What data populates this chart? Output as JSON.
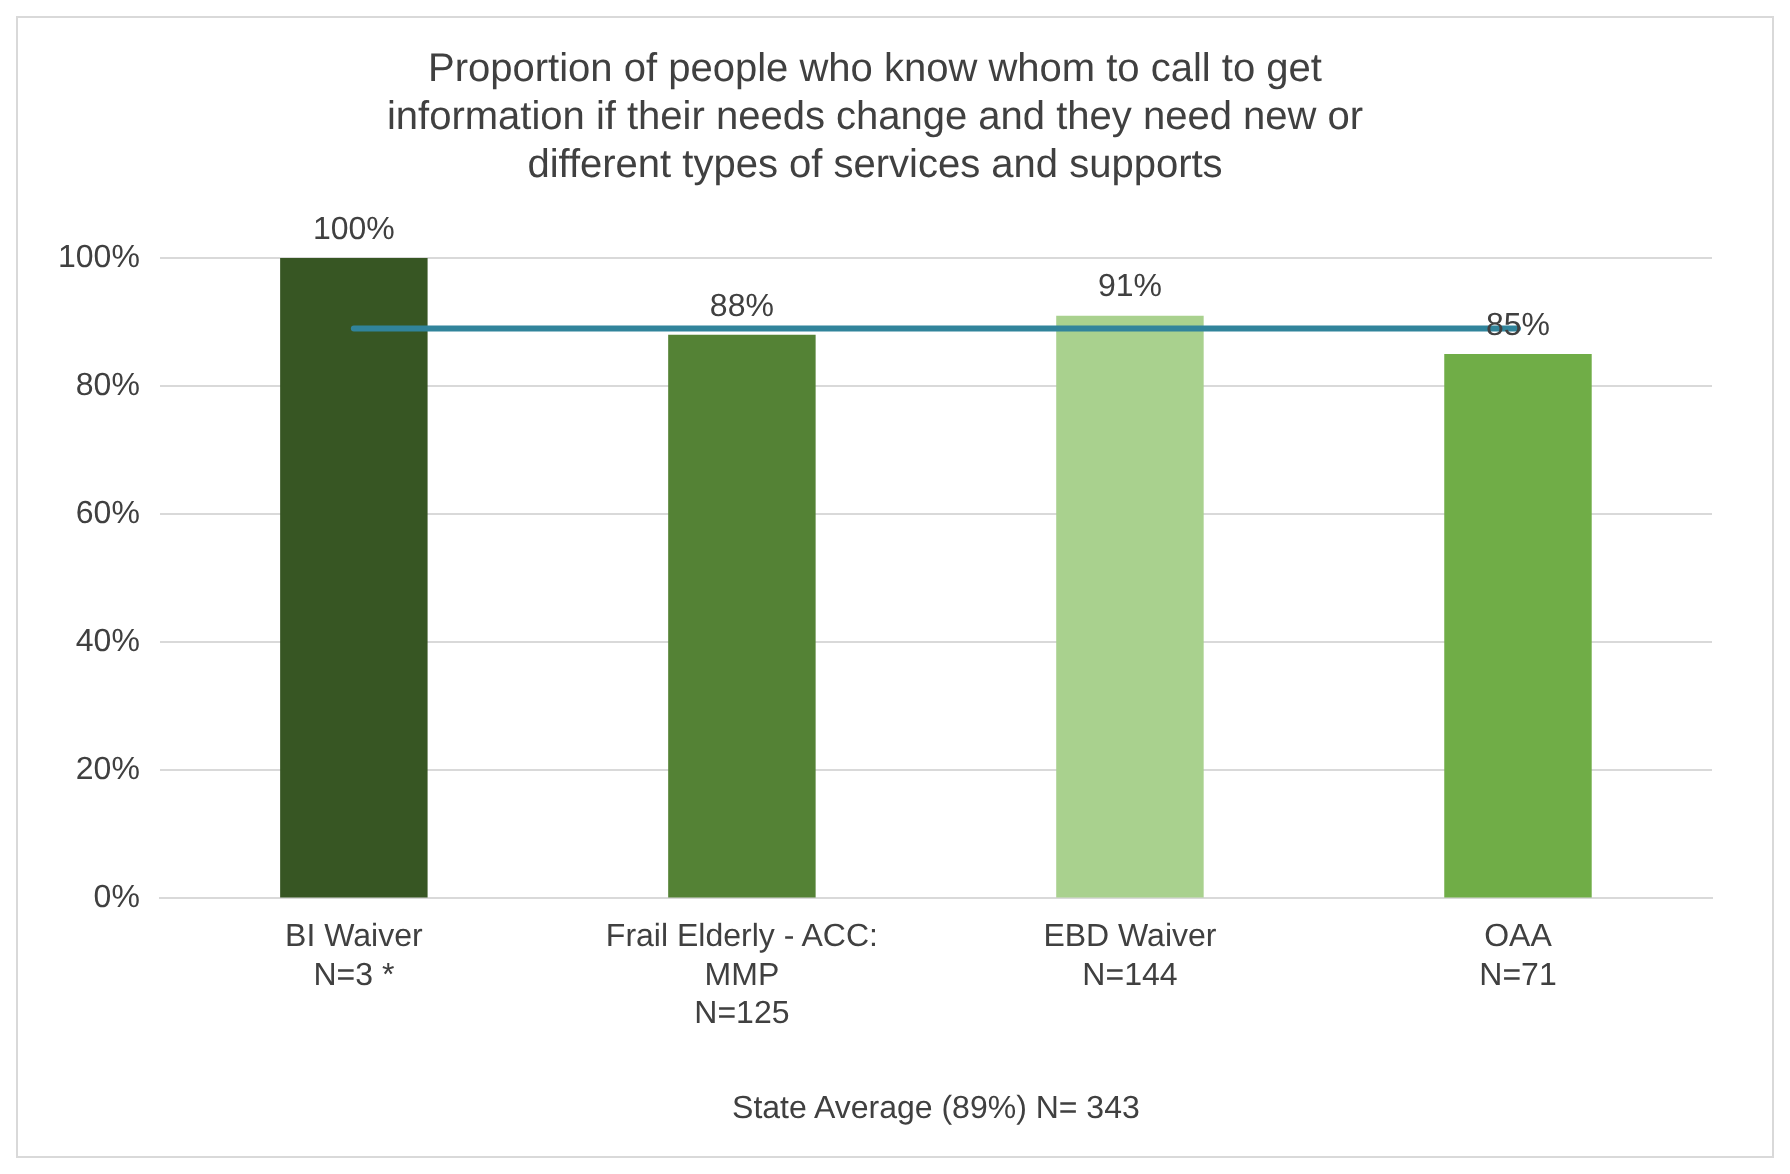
{
  "chart_data": {
    "type": "bar",
    "title": "Proportion of people who know whom to call to get\ninformation if their needs change and they need new or\ndifferent types of services and supports",
    "categories": [
      "BI Waiver\nN=3 *",
      "Frail Elderly - ACC:\nMMP\nN=125",
      "EBD Waiver\nN=144",
      "OAA\nN=71"
    ],
    "values": [
      100,
      88,
      91,
      85
    ],
    "colors": [
      "#375623",
      "#548235",
      "#a9d18e",
      "#70ad47"
    ],
    "value_labels": [
      "100%",
      "88%",
      "91%",
      "85%"
    ],
    "ylim": [
      0,
      100
    ],
    "yticks": [
      {
        "value": 0,
        "label": "0%"
      },
      {
        "value": 20,
        "label": "20%"
      },
      {
        "value": 40,
        "label": "40%"
      },
      {
        "value": 60,
        "label": "60%"
      },
      {
        "value": 80,
        "label": "80%"
      },
      {
        "value": 100,
        "label": "100%"
      }
    ],
    "grid": "y",
    "xlabel": "State Average (89%) N= 343",
    "ref_lines": [
      {
        "axis": "y",
        "value": 89,
        "color": "#31849b"
      }
    ]
  }
}
